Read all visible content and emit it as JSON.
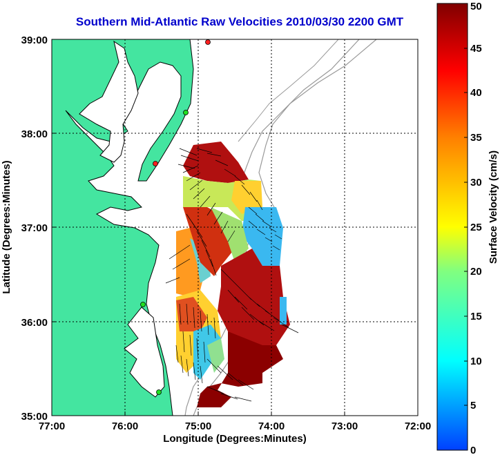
{
  "title": "Southern Mid-Atlantic Raw Velocities 2010/03/30 2200 GMT",
  "chart_data": {
    "type": "heatmap",
    "xlabel": "Longitude (Degrees:Minutes)",
    "ylabel": "Latitude (Degrees:Minutes)",
    "xlim": [
      -77,
      -72
    ],
    "ylim": [
      35,
      39
    ],
    "x_ticks": [
      "77:00",
      "76:00",
      "75:00",
      "74:00",
      "73:00",
      "72:00"
    ],
    "y_ticks": [
      "35:00",
      "36:00",
      "37:00",
      "38:00",
      "39:00"
    ],
    "grid": true,
    "colorbar": {
      "label": "Surface Velocity (cm/s)",
      "min": 0,
      "max": 50,
      "ticks": [
        "0",
        "5",
        "10",
        "15",
        "20",
        "25",
        "30",
        "35",
        "40",
        "45",
        "50"
      ]
    },
    "colors": {
      "land": "#44e5a0",
      "water": "#ffffff",
      "coast": "#000000",
      "bathymetry": "#999999",
      "title": "#0000cc"
    }
  }
}
